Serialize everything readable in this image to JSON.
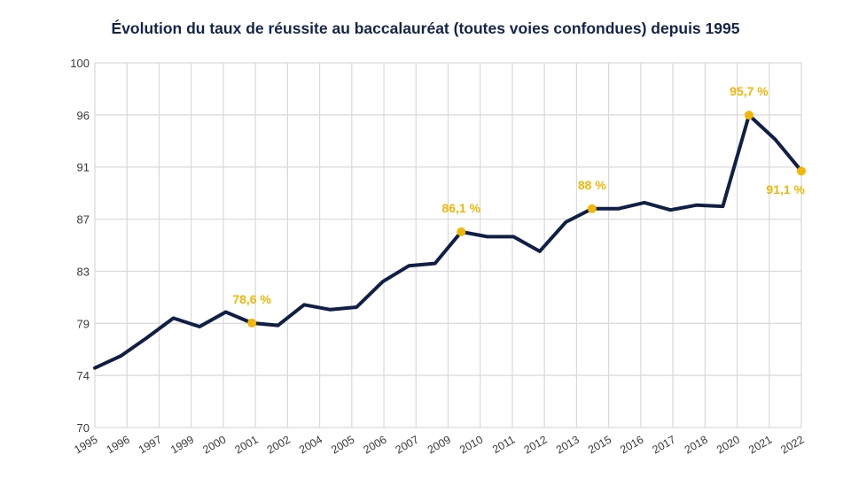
{
  "chart_data": {
    "type": "line",
    "title": "Évolution du taux de réussite au baccalauréat (toutes voies confondues) depuis 1995",
    "xlabel": "",
    "ylabel": "",
    "ylim": [
      70,
      100
    ],
    "xlim": [
      1995,
      2022
    ],
    "grid": true,
    "legend": "none",
    "y_ticks": [
      70,
      74,
      79,
      83,
      87,
      91,
      96,
      100
    ],
    "x_tick_labels": [
      "1995",
      "1996",
      "1997",
      "1999",
      "2000",
      "2001",
      "2002",
      "2004",
      "2005",
      "2006",
      "2007",
      "2009",
      "2010",
      "2011",
      "2012",
      "2013",
      "2015",
      "2016",
      "2017",
      "2018",
      "2020",
      "2021",
      "2022"
    ],
    "x": [
      1995,
      1996,
      1997,
      1998,
      1999,
      2000,
      2001,
      2002,
      2003,
      2004,
      2005,
      2006,
      2007,
      2008,
      2009,
      2010,
      2011,
      2012,
      2013,
      2014,
      2015,
      2016,
      2017,
      2018,
      2019,
      2020,
      2021,
      2022
    ],
    "series": [
      {
        "name": "Taux de réussite",
        "color": "#0f1f45",
        "values": [
          74.9,
          75.9,
          77.4,
          79.0,
          78.3,
          79.5,
          78.6,
          78.4,
          80.1,
          79.7,
          79.9,
          82.0,
          83.3,
          83.5,
          86.1,
          85.7,
          85.7,
          84.5,
          86.9,
          88.0,
          88.0,
          88.5,
          87.9,
          88.3,
          88.2,
          95.7,
          93.7,
          91.1
        ]
      }
    ],
    "annotations": [
      {
        "x": 2001,
        "value": 78.6,
        "label": "78,6 %",
        "position": "above"
      },
      {
        "x": 2009,
        "value": 86.1,
        "label": "86,1 %",
        "position": "above"
      },
      {
        "x": 2014,
        "value": 88.0,
        "label": "88 %",
        "position": "above"
      },
      {
        "x": 2020,
        "value": 95.7,
        "label": "95,7 %",
        "position": "above"
      },
      {
        "x": 2022,
        "value": 91.1,
        "label": "91,1 %",
        "position": "below"
      }
    ],
    "annotation_color": "#f2b705",
    "grid_color": "#d9d9d9"
  }
}
